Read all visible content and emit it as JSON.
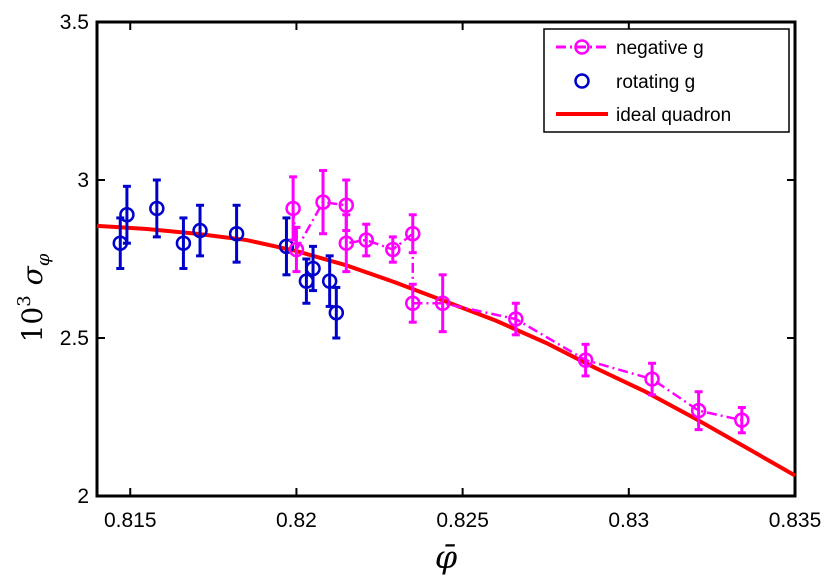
{
  "chart_data": {
    "type": "scatter",
    "title": "",
    "xlabel": "φ̄",
    "ylabel": {
      "prefix": "10",
      "exponent": "3",
      "symbol": "σ",
      "subscript": "φ"
    },
    "xlim": [
      0.814,
      0.835
    ],
    "ylim": [
      2.0,
      3.5
    ],
    "x_ticks": [
      0.815,
      0.82,
      0.825,
      0.83,
      0.835
    ],
    "x_tick_labels": [
      "0.815",
      "0.82",
      "0.825",
      "0.83",
      "0.835"
    ],
    "y_ticks": [
      2.0,
      2.5,
      3.0,
      3.5
    ],
    "y_tick_labels": [
      "2",
      "2.5",
      "3",
      "3.5"
    ],
    "grid": false,
    "legend_position": "top-right",
    "series": [
      {
        "name": "negative g",
        "style": "markers-dashdot",
        "color": "#ff00ff",
        "x": [
          0.8199,
          0.82,
          0.8208,
          0.8215,
          0.8215,
          0.8221,
          0.8229,
          0.8235,
          0.8235,
          0.8244,
          0.8266,
          0.8287,
          0.8307,
          0.8321,
          0.8334
        ],
        "y": [
          2.91,
          2.78,
          2.93,
          2.92,
          2.8,
          2.81,
          2.78,
          2.83,
          2.61,
          2.61,
          2.56,
          2.43,
          2.37,
          2.27,
          2.24
        ],
        "err": [
          0.1,
          0.07,
          0.1,
          0.08,
          0.09,
          0.05,
          0.04,
          0.06,
          0.06,
          0.09,
          0.05,
          0.05,
          0.05,
          0.06,
          0.04
        ]
      },
      {
        "name": "rotating g",
        "style": "markers",
        "color": "#0000cc",
        "x": [
          0.8147,
          0.8149,
          0.8158,
          0.8166,
          0.8171,
          0.8182,
          0.8197,
          0.8203,
          0.8205,
          0.821,
          0.8212
        ],
        "y": [
          2.8,
          2.89,
          2.91,
          2.8,
          2.84,
          2.83,
          2.79,
          2.68,
          2.72,
          2.68,
          2.58
        ],
        "err": [
          0.08,
          0.09,
          0.09,
          0.08,
          0.08,
          0.09,
          0.09,
          0.07,
          0.07,
          0.08,
          0.08
        ]
      },
      {
        "name": "ideal quadron",
        "style": "line",
        "color": "#ff0000",
        "x": [
          0.814,
          0.8155,
          0.817,
          0.8185,
          0.82,
          0.8215,
          0.823,
          0.8245,
          0.826,
          0.8275,
          0.829,
          0.8305,
          0.832,
          0.8335,
          0.835
        ],
        "y": [
          2.855,
          2.845,
          2.83,
          2.81,
          2.775,
          2.73,
          2.675,
          2.615,
          2.555,
          2.485,
          2.405,
          2.33,
          2.245,
          2.155,
          2.065
        ]
      }
    ]
  }
}
